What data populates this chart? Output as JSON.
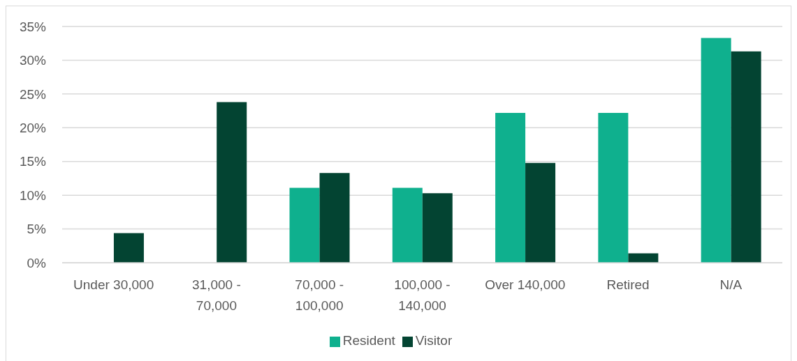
{
  "chart_data": {
    "type": "bar",
    "categories": [
      "Under 30,000",
      "31,000 - 70,000",
      "70,000 - 100,000",
      "100,000 - 140,000",
      "Over 140,000",
      "Retired",
      "N/A"
    ],
    "series": [
      {
        "name": "Resident",
        "color": "#0fb08e",
        "values": [
          0,
          0,
          11.1,
          11.1,
          22.2,
          22.2,
          33.3
        ]
      },
      {
        "name": "Visitor",
        "color": "#034432",
        "values": [
          4.4,
          23.8,
          13.3,
          10.3,
          14.8,
          1.4,
          31.3
        ]
      }
    ],
    "ylim": [
      0,
      35
    ],
    "yticks": [
      {
        "value": 0,
        "label": "0%"
      },
      {
        "value": 5,
        "label": "5%"
      },
      {
        "value": 10,
        "label": "10%"
      },
      {
        "value": 15,
        "label": "15%"
      },
      {
        "value": 20,
        "label": "20%"
      },
      {
        "value": 25,
        "label": "25%"
      },
      {
        "value": 30,
        "label": "30%"
      },
      {
        "value": 35,
        "label": "35%"
      }
    ],
    "grid": "y",
    "legend": "bottom"
  }
}
